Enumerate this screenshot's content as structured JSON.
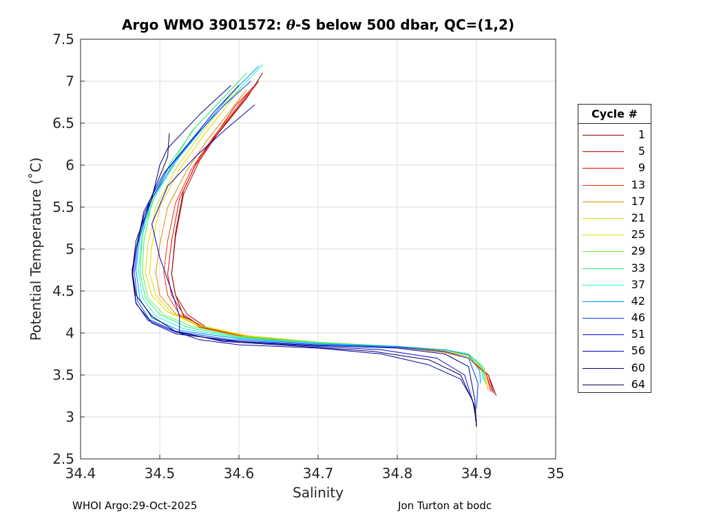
{
  "title_prefix": "Argo WMO 3901572: ",
  "title_symbol": "θ",
  "title_suffix": "-S below 500 dbar,  QC=(1,2)",
  "footer_left": "WHOI Argo:29-Oct-2025",
  "footer_right": "Jon Turton at bodc",
  "chart_data": {
    "type": "line",
    "xlabel": "Salinity",
    "ylabel": "Potential Temperature (˚C)",
    "xlim": [
      34.4,
      35
    ],
    "ylim": [
      2.5,
      7.5
    ],
    "xticks": [
      "34.4",
      "34.5",
      "34.6",
      "34.7",
      "34.8",
      "34.9",
      "35"
    ],
    "yticks": [
      "2.5",
      "3",
      "3.5",
      "4",
      "4.5",
      "5",
      "5.5",
      "6",
      "6.5",
      "7",
      "7.5"
    ],
    "grid": true,
    "legend": {
      "title": "Cycle #",
      "placement": "outside-right",
      "entries": [
        {
          "label": "1",
          "color": "#800000"
        },
        {
          "label": "5",
          "color": "#b00000"
        },
        {
          "label": "9",
          "color": "#e00000"
        },
        {
          "label": "13",
          "color": "#ff2a00"
        },
        {
          "label": "17",
          "color": "#d88a00"
        },
        {
          "label": "21",
          "color": "#f0d000"
        },
        {
          "label": "25",
          "color": "#d8e000"
        },
        {
          "label": "29",
          "color": "#60f040"
        },
        {
          "label": "33",
          "color": "#20f080"
        },
        {
          "label": "37",
          "color": "#20f0d0"
        },
        {
          "label": "42",
          "color": "#0090ff"
        },
        {
          "label": "46",
          "color": "#0040ff"
        },
        {
          "label": "51",
          "color": "#0000e0"
        },
        {
          "label": "56",
          "color": "#0000b0"
        },
        {
          "label": "60",
          "color": "#000080"
        },
        {
          "label": "64",
          "color": "#000050"
        }
      ]
    },
    "series": [
      {
        "name": "1",
        "color": "#800000",
        "x": [
          34.63,
          34.61,
          34.58,
          34.55,
          34.53,
          34.52,
          34.515,
          34.52,
          34.53,
          34.56,
          34.62,
          34.7,
          34.8,
          34.86,
          34.89,
          34.915,
          34.925
        ],
        "y": [
          7.1,
          6.8,
          6.45,
          6.1,
          5.7,
          5.2,
          4.7,
          4.45,
          4.2,
          4.05,
          3.95,
          3.88,
          3.84,
          3.78,
          3.7,
          3.5,
          3.25
        ]
      },
      {
        "name": "5",
        "color": "#b00000",
        "x": [
          34.625,
          34.6,
          34.575,
          34.55,
          34.53,
          34.52,
          34.515,
          34.52,
          34.535,
          34.56,
          34.62,
          34.7,
          34.8,
          34.86,
          34.89,
          34.915,
          34.922
        ],
        "y": [
          7.0,
          6.7,
          6.4,
          6.05,
          5.65,
          5.15,
          4.7,
          4.45,
          4.22,
          4.06,
          3.95,
          3.88,
          3.83,
          3.77,
          3.7,
          3.5,
          3.28
        ]
      },
      {
        "name": "9",
        "color": "#e00000",
        "x": [
          34.62,
          34.595,
          34.57,
          34.545,
          34.525,
          34.515,
          34.51,
          34.515,
          34.53,
          34.555,
          34.61,
          34.7,
          34.8,
          34.86,
          34.89,
          34.912,
          34.92
        ],
        "y": [
          6.95,
          6.7,
          6.35,
          6.0,
          5.6,
          5.1,
          4.7,
          4.45,
          4.22,
          4.06,
          3.95,
          3.88,
          3.83,
          3.77,
          3.7,
          3.52,
          3.3
        ]
      },
      {
        "name": "13",
        "color": "#ff2a00",
        "x": [
          34.615,
          34.59,
          34.565,
          34.54,
          34.52,
          34.51,
          34.505,
          34.51,
          34.525,
          34.55,
          34.61,
          34.7,
          34.8,
          34.86,
          34.89,
          34.912,
          34.918
        ],
        "y": [
          6.9,
          6.6,
          6.3,
          5.95,
          5.55,
          5.1,
          4.72,
          4.45,
          4.22,
          4.07,
          3.95,
          3.88,
          3.83,
          3.77,
          3.7,
          3.52,
          3.3
        ]
      },
      {
        "name": "17",
        "color": "#d88a00",
        "x": [
          34.61,
          34.585,
          34.56,
          34.535,
          34.51,
          34.5,
          34.495,
          34.5,
          34.52,
          34.55,
          34.61,
          34.7,
          34.8,
          34.86,
          34.89,
          34.91,
          34.915
        ],
        "y": [
          6.9,
          6.6,
          6.3,
          5.95,
          5.5,
          5.05,
          4.72,
          4.45,
          4.23,
          4.08,
          3.96,
          3.88,
          3.83,
          3.77,
          3.7,
          3.52,
          3.32
        ]
      },
      {
        "name": "21",
        "color": "#f0d000",
        "x": [
          34.605,
          34.58,
          34.555,
          34.525,
          34.5,
          34.49,
          34.487,
          34.495,
          34.515,
          34.55,
          34.61,
          34.7,
          34.8,
          34.86,
          34.89,
          34.91,
          34.914
        ],
        "y": [
          6.95,
          6.65,
          6.35,
          5.95,
          5.5,
          5.05,
          4.72,
          4.45,
          4.24,
          4.09,
          3.96,
          3.89,
          3.83,
          3.78,
          3.72,
          3.55,
          3.35
        ]
      },
      {
        "name": "25",
        "color": "#d8e000",
        "x": [
          34.6,
          34.575,
          34.55,
          34.52,
          34.495,
          34.485,
          34.482,
          34.49,
          34.51,
          34.545,
          34.61,
          34.7,
          34.8,
          34.86,
          34.89,
          34.91,
          34.912
        ],
        "y": [
          6.95,
          6.65,
          6.35,
          5.95,
          5.5,
          5.05,
          4.72,
          4.45,
          4.25,
          4.1,
          3.97,
          3.89,
          3.84,
          3.79,
          3.73,
          3.55,
          3.38
        ]
      },
      {
        "name": "29",
        "color": "#60f040",
        "x": [
          34.6,
          34.57,
          34.54,
          34.515,
          34.49,
          34.48,
          34.478,
          34.485,
          34.505,
          34.54,
          34.6,
          34.7,
          34.8,
          34.86,
          34.89,
          34.91,
          34.912
        ],
        "y": [
          7.0,
          6.7,
          6.4,
          6.0,
          5.55,
          5.1,
          4.72,
          4.42,
          4.22,
          4.08,
          3.96,
          3.89,
          3.84,
          3.8,
          3.74,
          3.58,
          3.4
        ]
      },
      {
        "name": "33",
        "color": "#20f080",
        "x": [
          34.61,
          34.58,
          34.545,
          34.515,
          34.49,
          34.478,
          34.475,
          34.482,
          34.5,
          34.535,
          34.6,
          34.7,
          34.8,
          34.86,
          34.89,
          34.908,
          34.91
        ],
        "y": [
          7.1,
          6.8,
          6.45,
          6.05,
          5.6,
          5.15,
          4.72,
          4.42,
          4.22,
          4.07,
          3.95,
          3.88,
          3.84,
          3.8,
          3.75,
          3.6,
          3.42
        ]
      },
      {
        "name": "37",
        "color": "#20f0d0",
        "x": [
          34.63,
          34.6,
          34.56,
          34.525,
          34.495,
          34.478,
          34.473,
          34.478,
          34.495,
          34.53,
          34.6,
          34.7,
          34.8,
          34.86,
          34.89,
          34.906,
          34.908
        ],
        "y": [
          7.2,
          6.9,
          6.5,
          6.1,
          5.65,
          5.2,
          4.75,
          4.42,
          4.2,
          4.05,
          3.94,
          3.88,
          3.84,
          3.8,
          3.75,
          3.6,
          3.45
        ]
      },
      {
        "name": "42",
        "color": "#0090ff",
        "x": [
          34.625,
          34.59,
          34.555,
          34.52,
          34.49,
          34.475,
          34.47,
          34.475,
          34.49,
          34.525,
          34.6,
          34.7,
          34.8,
          34.86,
          34.89,
          34.904,
          34.905
        ],
        "y": [
          7.18,
          6.85,
          6.45,
          6.05,
          5.6,
          5.15,
          4.75,
          4.4,
          4.18,
          4.03,
          3.93,
          3.87,
          3.84,
          3.8,
          3.74,
          3.55,
          3.4
        ]
      },
      {
        "name": "46",
        "color": "#0040ff",
        "x": [
          34.615,
          34.58,
          34.545,
          34.51,
          34.485,
          34.472,
          34.468,
          34.472,
          34.487,
          34.52,
          34.59,
          34.7,
          34.8,
          34.86,
          34.89,
          34.902,
          34.9
        ],
        "y": [
          7.0,
          6.7,
          6.35,
          5.95,
          5.5,
          5.05,
          4.72,
          4.38,
          4.16,
          4.02,
          3.92,
          3.86,
          3.83,
          3.78,
          3.7,
          3.4,
          3.1
        ]
      },
      {
        "name": "51",
        "color": "#0000e0",
        "x": [
          34.6,
          34.57,
          34.54,
          34.505,
          34.48,
          34.47,
          34.466,
          34.47,
          34.485,
          34.52,
          34.58,
          34.68,
          34.78,
          34.85,
          34.885,
          34.898,
          34.9
        ],
        "y": [
          6.95,
          6.65,
          6.3,
          5.9,
          5.45,
          5.0,
          4.7,
          4.36,
          4.15,
          4.01,
          3.91,
          3.85,
          3.8,
          3.7,
          3.5,
          3.1,
          2.9
        ]
      },
      {
        "name": "56",
        "color": "#0000b0",
        "x": [
          34.62,
          34.58,
          34.545,
          34.51,
          34.49,
          34.5,
          34.515,
          34.525,
          34.525,
          34.55,
          34.6,
          34.7,
          34.78,
          34.84,
          34.88,
          34.895,
          34.9
        ],
        "y": [
          6.72,
          6.4,
          6.1,
          5.75,
          5.3,
          4.9,
          4.5,
          4.2,
          4.0,
          3.92,
          3.86,
          3.82,
          3.75,
          3.62,
          3.45,
          3.2,
          2.95
        ]
      },
      {
        "name": "60",
        "color": "#000080",
        "x": [
          34.59,
          34.55,
          34.51,
          34.5,
          34.49,
          34.47,
          34.465,
          34.47,
          34.49,
          34.52,
          34.6,
          34.7,
          34.8,
          34.86,
          34.89,
          34.898,
          34.9
        ],
        "y": [
          6.95,
          6.6,
          6.2,
          6.0,
          5.6,
          5.1,
          4.7,
          4.35,
          4.12,
          3.99,
          3.9,
          3.85,
          3.82,
          3.75,
          3.6,
          3.2,
          2.88
        ]
      },
      {
        "name": "64",
        "color": "#000050",
        "x": [
          34.512,
          34.51,
          34.495,
          34.48,
          34.47,
          34.465,
          34.47,
          34.49,
          34.52,
          34.58,
          34.68,
          34.77,
          34.84,
          34.88,
          34.897,
          34.9
        ],
        "y": [
          6.38,
          6.1,
          5.75,
          5.4,
          5.0,
          4.75,
          4.45,
          4.2,
          4.02,
          3.9,
          3.84,
          3.78,
          3.68,
          3.5,
          3.15,
          2.88
        ]
      }
    ]
  }
}
